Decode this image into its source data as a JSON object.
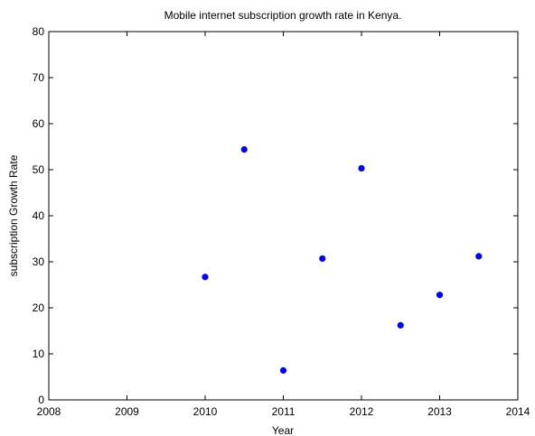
{
  "chart_data": {
    "type": "scatter",
    "title": "Mobile internet subscription growth rate in Kenya.",
    "xlabel": "Year",
    "ylabel": "subscription Growth Rate",
    "xlim": [
      2008,
      2014
    ],
    "ylim": [
      0,
      80
    ],
    "xticks": [
      2008,
      2009,
      2010,
      2011,
      2012,
      2013,
      2014
    ],
    "yticks": [
      0,
      10,
      20,
      30,
      40,
      50,
      60,
      70,
      80
    ],
    "grid": false,
    "marker_color": "#0000ff",
    "points": [
      {
        "x": 2010.0,
        "y": 26.7
      },
      {
        "x": 2010.5,
        "y": 54.4
      },
      {
        "x": 2011.0,
        "y": 6.4
      },
      {
        "x": 2011.5,
        "y": 30.7
      },
      {
        "x": 2012.0,
        "y": 50.3
      },
      {
        "x": 2012.5,
        "y": 16.2
      },
      {
        "x": 2013.0,
        "y": 22.8
      },
      {
        "x": 2013.5,
        "y": 31.2
      }
    ]
  }
}
